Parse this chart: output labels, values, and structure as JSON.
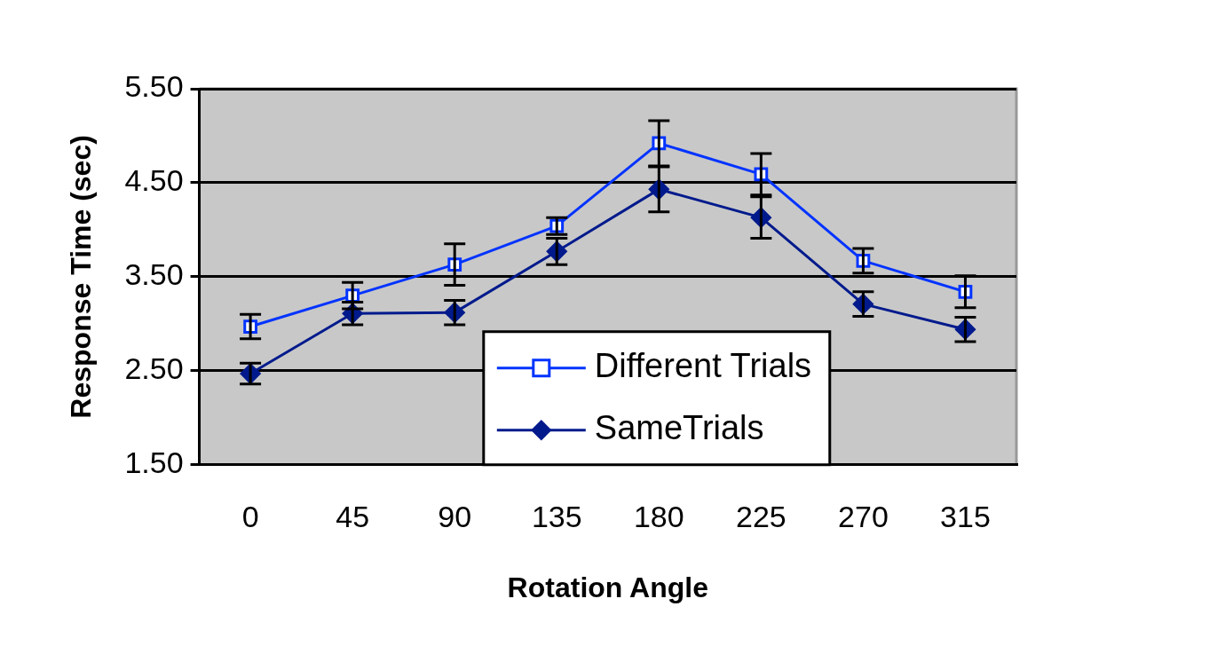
{
  "chart_data": {
    "type": "line",
    "xlabel": "Rotation Angle",
    "ylabel": "Response Time (sec)",
    "categories": [
      "0",
      "45",
      "90",
      "135",
      "180",
      "225",
      "270",
      "315"
    ],
    "series": [
      {
        "name": "Different Trials",
        "color": "#0033ff",
        "marker": "square",
        "values": [
          2.97,
          3.3,
          3.63,
          4.04,
          4.92,
          4.59,
          3.67,
          3.34
        ],
        "errors": [
          0.13,
          0.14,
          0.22,
          0.09,
          0.24,
          0.22,
          0.13,
          0.17
        ]
      },
      {
        "name": "SameTrials",
        "color": "#001a8c",
        "marker": "diamond",
        "values": [
          2.47,
          3.11,
          3.12,
          3.77,
          4.43,
          4.13,
          3.21,
          2.94
        ],
        "errors": [
          0.11,
          0.12,
          0.13,
          0.14,
          0.24,
          0.22,
          0.13,
          0.13
        ]
      }
    ],
    "ylim": [
      1.5,
      5.5
    ],
    "yticks": [
      {
        "value": 1.5,
        "label": "1.50"
      },
      {
        "value": 2.5,
        "label": "2.50"
      },
      {
        "value": 3.5,
        "label": "3.50"
      },
      {
        "value": 4.5,
        "label": "4.50"
      },
      {
        "value": 5.5,
        "label": "5.50"
      }
    ],
    "grid": "y",
    "legend": "bottom"
  }
}
